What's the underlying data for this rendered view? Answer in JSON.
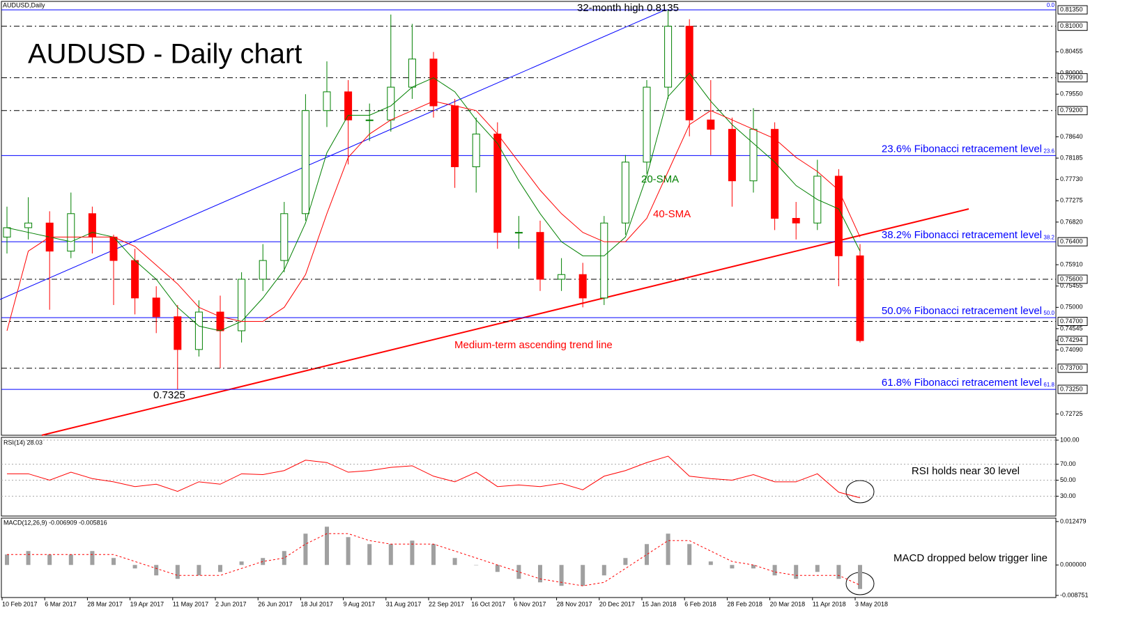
{
  "chart_data": [
    {
      "type": "candlestick",
      "title": "AUDUSD,Daily",
      "subtitle": "AUDUSD - Daily chart",
      "categories": [
        "10 Feb 2017",
        null,
        "6 Mar 2017",
        null,
        "28 Mar 2017",
        null,
        "19 Apr 2017",
        null,
        "11 May 2017",
        null,
        "2 Jun 2017",
        null,
        "26 Jun 2017",
        null,
        "18 Jul 2017",
        null,
        "9 Aug 2017",
        null,
        "31 Aug 2017",
        null,
        "22 Sep 2017",
        null,
        "16 Oct 2017",
        null,
        "6 Nov 2017",
        null,
        "28 Nov 2017",
        null,
        "20 Dec 2017",
        null,
        "15 Jan 2018",
        null,
        "6 Feb 2018",
        null,
        "28 Feb 2018",
        null,
        "20 Mar 2018",
        null,
        "11 Apr 2018",
        null,
        "3 May 2018"
      ],
      "open": [
        0.765,
        0.767,
        0.768,
        0.762,
        0.77,
        0.765,
        0.76,
        0.752,
        0.748,
        0.741,
        0.749,
        0.745,
        0.756,
        0.76,
        0.77,
        0.792,
        0.796,
        0.79,
        0.79,
        0.797,
        0.803,
        0.793,
        0.78,
        0.787,
        0.766,
        0.766,
        0.756,
        0.757,
        0.752,
        0.768,
        0.781,
        0.797,
        0.81,
        0.79,
        0.788,
        0.777,
        0.788,
        0.769,
        0.768,
        0.778,
        0.761
      ],
      "high": [
        0.7715,
        0.7735,
        0.7705,
        0.7745,
        0.7715,
        0.7655,
        0.7625,
        0.7545,
        0.7505,
        0.7515,
        0.7525,
        0.7575,
        0.7635,
        0.7725,
        0.7955,
        0.8025,
        0.7985,
        0.7935,
        0.8125,
        0.8105,
        0.8045,
        0.7945,
        0.7905,
        0.7895,
        0.7695,
        0.7685,
        0.7605,
        0.7595,
        0.7695,
        0.7825,
        0.7985,
        0.8135,
        0.8115,
        0.7985,
        0.7905,
        0.7925,
        0.7895,
        0.7725,
        0.7815,
        0.7795,
        0.7635
      ],
      "low": [
        0.7615,
        0.7645,
        0.7495,
        0.7605,
        0.7615,
        0.7505,
        0.7485,
        0.7445,
        0.7325,
        0.7395,
        0.737,
        0.7425,
        0.7535,
        0.7575,
        0.7685,
        0.7885,
        0.7805,
        0.7855,
        0.7875,
        0.7945,
        0.7905,
        0.7755,
        0.7745,
        0.7625,
        0.7625,
        0.7535,
        0.7535,
        0.75,
        0.7505,
        0.7655,
        0.7785,
        0.7945,
        0.7865,
        0.7825,
        0.7715,
        0.7745,
        0.7665,
        0.7645,
        0.7665,
        0.7545,
        0.7425
      ],
      "close": [
        0.767,
        0.768,
        0.762,
        0.77,
        0.765,
        0.76,
        0.752,
        0.748,
        0.741,
        0.749,
        0.745,
        0.756,
        0.76,
        0.77,
        0.792,
        0.796,
        0.79,
        0.79,
        0.797,
        0.803,
        0.793,
        0.78,
        0.787,
        0.766,
        0.766,
        0.756,
        0.757,
        0.752,
        0.768,
        0.781,
        0.797,
        0.81,
        0.79,
        0.788,
        0.777,
        0.788,
        0.769,
        0.768,
        0.778,
        0.761,
        0.7429
      ],
      "up_color": "#008000",
      "down_color": "#ff0000",
      "series": [
        {
          "name": "20-SMA",
          "color": "#008000",
          "values": [
            0.767,
            0.766,
            0.765,
            0.764,
            0.766,
            0.765,
            0.76,
            0.756,
            0.75,
            0.746,
            0.745,
            0.747,
            0.752,
            0.758,
            0.768,
            0.783,
            0.791,
            0.791,
            0.793,
            0.797,
            0.799,
            0.796,
            0.79,
            0.785,
            0.777,
            0.77,
            0.764,
            0.761,
            0.761,
            0.765,
            0.778,
            0.795,
            0.8,
            0.794,
            0.789,
            0.785,
            0.781,
            0.776,
            0.773,
            0.771,
            0.762
          ]
        },
        {
          "name": "40-SMA",
          "color": "#ff0000",
          "values": [
            0.745,
            0.762,
            0.765,
            0.765,
            0.765,
            0.765,
            0.763,
            0.759,
            0.755,
            0.75,
            0.748,
            0.747,
            0.747,
            0.75,
            0.757,
            0.77,
            0.782,
            0.787,
            0.79,
            0.792,
            0.794,
            0.793,
            0.792,
            0.787,
            0.781,
            0.775,
            0.77,
            0.766,
            0.764,
            0.764,
            0.769,
            0.779,
            0.789,
            0.792,
            0.79,
            0.788,
            0.786,
            0.782,
            0.779,
            0.775,
            0.765
          ]
        }
      ],
      "levels": [
        {
          "value": 0.8135,
          "style": "solid",
          "label": "0.81350",
          "fib": "0.0"
        },
        {
          "value": 0.81,
          "style": "dashdot",
          "label": "0.81000"
        },
        {
          "value": 0.799,
          "style": "dashdot",
          "label": "0.79900"
        },
        {
          "value": 0.792,
          "style": "dashdot",
          "label": "0.79200"
        },
        {
          "value": 0.7824,
          "style": "solid",
          "fib": "23.6",
          "text": "23.6% Fibonacci retracement level"
        },
        {
          "value": 0.764,
          "style": "solid",
          "label": "0.76400",
          "fib": "38.2",
          "text": "38.2% Fibonacci retracement level"
        },
        {
          "value": 0.756,
          "style": "dashdot",
          "label": "0.75600"
        },
        {
          "value": 0.7478,
          "style": "solid",
          "fib": "50.0",
          "text": "50.0% Fibonacci retracement level"
        },
        {
          "value": 0.747,
          "style": "dashdot",
          "label": "0.74700"
        },
        {
          "value": 0.737,
          "style": "dashdot",
          "label": "0.73700"
        },
        {
          "value": 0.7325,
          "style": "solid",
          "label": "0.73250",
          "fib": "61.8",
          "text": "61.8% Fibonacci retracement level"
        }
      ],
      "level_color": "#0000ff",
      "last_price": {
        "value": 0.74294,
        "label": "0.74294"
      },
      "annotations": [
        {
          "text": "32-month high 0.8135",
          "color": "#000000"
        },
        {
          "text": "Medium-term ascending trend line",
          "color": "#ff0000"
        },
        {
          "text": "0.7325",
          "color": "#000000"
        }
      ],
      "ylim": [
        0.7227,
        0.8156
      ],
      "yticks": [
        {
          "value": 0.80455,
          "label": "0.80455"
        },
        {
          "value": 0.8,
          "label": "0.80000"
        },
        {
          "value": 0.7955,
          "label": "0.79550"
        },
        {
          "value": 0.7864,
          "label": "0.78640"
        },
        {
          "value": 0.78185,
          "label": "0.78185"
        },
        {
          "value": 0.7773,
          "label": "0.77730"
        },
        {
          "value": 0.77275,
          "label": "0.77275"
        },
        {
          "value": 0.7682,
          "label": "0.76820"
        },
        {
          "value": 0.7591,
          "label": "0.75910"
        },
        {
          "value": 0.75455,
          "label": "0.75455"
        },
        {
          "value": 0.75,
          "label": "0.75000"
        },
        {
          "value": 0.74545,
          "label": "0.74545"
        },
        {
          "value": 0.7409,
          "label": "0.74090"
        },
        {
          "value": 0.72725,
          "label": "0.72725"
        }
      ]
    },
    {
      "type": "line",
      "title": "RSI(14) 28.03",
      "color": "#ff0000",
      "values": [
        58,
        58,
        50,
        60,
        52,
        48,
        42,
        45,
        36,
        48,
        45,
        58,
        57,
        62,
        75,
        72,
        60,
        62,
        66,
        68,
        55,
        48,
        60,
        42,
        44,
        42,
        46,
        38,
        55,
        62,
        72,
        80,
        55,
        52,
        50,
        57,
        48,
        48,
        58,
        35,
        28.03
      ],
      "annotation": "RSI holds near 30 level",
      "ylim": [
        3.5,
        103.5
      ],
      "yticks": [
        {
          "value": 100,
          "label": "100.00"
        },
        {
          "value": 70,
          "label": "70.00"
        },
        {
          "value": 50,
          "label": "50.00"
        },
        {
          "value": 30,
          "label": "30.00"
        }
      ]
    },
    {
      "type": "macd",
      "title": "MACD(12,26,9) -0.006909 -0.005816",
      "color": "#a0a0a0",
      "signal_color": "#ff0000",
      "values": [
        0.003,
        0.004,
        0.003,
        0.003,
        0.004,
        0.002,
        -0.001,
        -0.003,
        -0.004,
        -0.003,
        -0.002,
        0.001,
        0.002,
        0.004,
        0.009,
        0.011,
        0.008,
        0.006,
        0.006,
        0.007,
        0.006,
        0.002,
        0.0,
        -0.002,
        -0.004,
        -0.005,
        -0.006,
        -0.006,
        -0.003,
        0.002,
        0.006,
        0.009,
        0.006,
        0.001,
        -0.001,
        -0.001,
        -0.003,
        -0.004,
        -0.002,
        -0.004,
        -0.006909
      ],
      "signal": [
        0.003,
        0.003,
        0.003,
        0.003,
        0.003,
        0.003,
        0.001,
        -0.001,
        -0.003,
        -0.003,
        -0.003,
        -0.001,
        0.001,
        0.002,
        0.006,
        0.009,
        0.009,
        0.007,
        0.006,
        0.006,
        0.006,
        0.004,
        0.002,
        0.0,
        -0.002,
        -0.004,
        -0.005,
        -0.006,
        -0.005,
        -0.001,
        0.003,
        0.007,
        0.007,
        0.004,
        0.001,
        0.0,
        -0.002,
        -0.003,
        -0.003,
        -0.003,
        -0.005816
      ],
      "annotation": "MACD dropped below trigger line",
      "ylim": [
        -0.00936,
        0.01326
      ],
      "yticks": [
        {
          "value": 0.012479,
          "label": "0.012479"
        },
        {
          "value": 0,
          "label": "0.000000"
        },
        {
          "value": -0.008751,
          "label": "-0.008751"
        }
      ]
    }
  ]
}
